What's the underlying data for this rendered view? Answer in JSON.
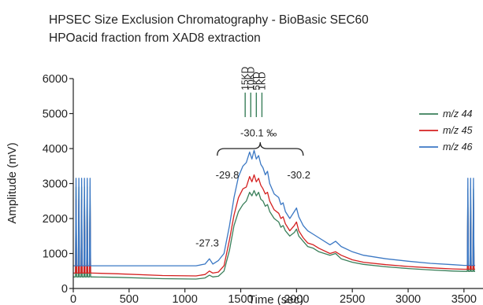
{
  "chart_data": {
    "type": "line",
    "title": "HPSEC Size Exclusion Chromatography - BioBasic SEC60",
    "subtitle": "HPOacid fraction from XAD8 extraction",
    "xlabel": "Time (sec)",
    "ylabel": "Amplitude (mV)",
    "xlim": [
      0,
      3600
    ],
    "ylim": [
      0,
      6000
    ],
    "xticks": [
      0,
      500,
      1000,
      1500,
      2000,
      2500,
      3000,
      3500
    ],
    "yticks": [
      0,
      1000,
      2000,
      3000,
      4000,
      5000,
      6000
    ],
    "grid": false,
    "legend_position": "right",
    "series": [
      {
        "name": "m/z 44",
        "color": "#3a7f5a",
        "x": [
          0,
          20,
          25,
          30,
          45,
          50,
          55,
          70,
          75,
          80,
          95,
          100,
          105,
          120,
          125,
          130,
          145,
          150,
          155,
          170,
          400,
          800,
          1100,
          1180,
          1220,
          1250,
          1300,
          1350,
          1400,
          1440,
          1480,
          1520,
          1550,
          1580,
          1600,
          1620,
          1640,
          1660,
          1680,
          1700,
          1720,
          1740,
          1760,
          1800,
          1840,
          1860,
          1880,
          1900,
          1940,
          1980,
          2000,
          2020,
          2060,
          2100,
          2150,
          2200,
          2300,
          2350,
          2400,
          2500,
          2600,
          2800,
          3000,
          3200,
          3400,
          3500,
          3530,
          3535,
          3540,
          3555,
          3560,
          3565,
          3580,
          3585,
          3590,
          3600
        ],
        "y": [
          330,
          330,
          2900,
          330,
          330,
          2900,
          330,
          330,
          2900,
          330,
          330,
          2900,
          330,
          330,
          2900,
          330,
          330,
          2900,
          330,
          330,
          320,
          280,
          270,
          300,
          380,
          330,
          350,
          500,
          1100,
          1800,
          2200,
          2400,
          2500,
          2750,
          2650,
          2800,
          2650,
          2750,
          2550,
          2500,
          2350,
          2400,
          2200,
          2000,
          1900,
          1750,
          1800,
          1650,
          1500,
          1600,
          1700,
          1500,
          1350,
          1200,
          1150,
          1050,
          950,
          1000,
          850,
          750,
          690,
          620,
          570,
          530,
          500,
          490,
          490,
          2850,
          490,
          490,
          2850,
          490,
          490,
          2850,
          490,
          490
        ]
      },
      {
        "name": "m/z 45",
        "color": "#d42020",
        "x": [
          0,
          20,
          25,
          30,
          45,
          50,
          55,
          70,
          75,
          80,
          95,
          100,
          105,
          120,
          125,
          130,
          145,
          150,
          155,
          170,
          400,
          800,
          1100,
          1180,
          1220,
          1250,
          1300,
          1350,
          1400,
          1440,
          1480,
          1520,
          1550,
          1580,
          1600,
          1620,
          1640,
          1660,
          1680,
          1700,
          1720,
          1740,
          1760,
          1800,
          1840,
          1860,
          1880,
          1900,
          1940,
          1980,
          2000,
          2020,
          2060,
          2100,
          2150,
          2200,
          2300,
          2350,
          2400,
          2500,
          2600,
          2800,
          3000,
          3200,
          3400,
          3500,
          3530,
          3535,
          3540,
          3555,
          3560,
          3565,
          3580,
          3585,
          3590,
          3600
        ],
        "y": [
          440,
          440,
          2550,
          440,
          440,
          2550,
          440,
          440,
          2550,
          440,
          440,
          2550,
          440,
          440,
          2550,
          440,
          440,
          2550,
          440,
          440,
          420,
          370,
          360,
          400,
          500,
          440,
          470,
          650,
          1400,
          2100,
          2600,
          2850,
          2900,
          3200,
          3050,
          3250,
          3050,
          3150,
          2950,
          2850,
          2700,
          2750,
          2500,
          2250,
          2150,
          2000,
          2050,
          1850,
          1650,
          1800,
          1900,
          1650,
          1450,
          1300,
          1250,
          1150,
          1000,
          1050,
          950,
          820,
          750,
          680,
          630,
          590,
          560,
          550,
          550,
          2550,
          550,
          550,
          2550,
          550,
          550,
          2550,
          550,
          550
        ]
      },
      {
        "name": "m/z 46",
        "color": "#3b78c4",
        "x": [
          0,
          20,
          25,
          30,
          45,
          50,
          55,
          70,
          75,
          80,
          95,
          100,
          105,
          120,
          125,
          130,
          145,
          150,
          155,
          170,
          400,
          800,
          1100,
          1180,
          1220,
          1250,
          1300,
          1350,
          1400,
          1440,
          1480,
          1520,
          1550,
          1580,
          1600,
          1620,
          1640,
          1660,
          1680,
          1700,
          1720,
          1740,
          1760,
          1800,
          1840,
          1860,
          1880,
          1900,
          1940,
          1980,
          2000,
          2020,
          2060,
          2100,
          2150,
          2200,
          2300,
          2350,
          2400,
          2500,
          2600,
          2800,
          3000,
          3200,
          3400,
          3500,
          3530,
          3535,
          3540,
          3555,
          3560,
          3565,
          3580,
          3585,
          3590,
          3600
        ],
        "y": [
          650,
          650,
          3150,
          650,
          650,
          3150,
          650,
          650,
          3150,
          650,
          650,
          3150,
          650,
          650,
          3150,
          650,
          650,
          3150,
          650,
          650,
          650,
          650,
          650,
          700,
          850,
          700,
          800,
          1000,
          1800,
          2600,
          3200,
          3500,
          3600,
          3900,
          3700,
          3950,
          3700,
          3800,
          3550,
          3450,
          3250,
          3350,
          3000,
          2700,
          2600,
          2400,
          2450,
          2200,
          2000,
          2200,
          2300,
          2050,
          1800,
          1650,
          1550,
          1450,
          1250,
          1350,
          1200,
          1050,
          950,
          850,
          780,
          720,
          680,
          660,
          660,
          3150,
          660,
          660,
          3150,
          660,
          660,
          3150,
          660,
          660
        ]
      }
    ],
    "annotations": [
      {
        "text": "-27.3",
        "x": 1200,
        "y": 1200
      },
      {
        "text": "-29.8",
        "x": 1380,
        "y": 3150
      },
      {
        "text": "-30.1 ‰",
        "x": 1660,
        "y": 4350
      },
      {
        "text": "-30.2",
        "x": 2020,
        "y": 3150
      }
    ],
    "bracket": {
      "x_start": 1290,
      "x_end": 2060,
      "y": 4000
    },
    "size_markers": [
      {
        "label": "15KD",
        "x": 1540
      },
      {
        "label": "10KD",
        "x": 1590
      },
      {
        "label": "5KD",
        "x": 1640
      },
      {
        "label": "1KD",
        "x": 1690
      }
    ],
    "size_marker_color": "#3a7f5a",
    "size_marker_range": [
      4900,
      5600
    ]
  }
}
